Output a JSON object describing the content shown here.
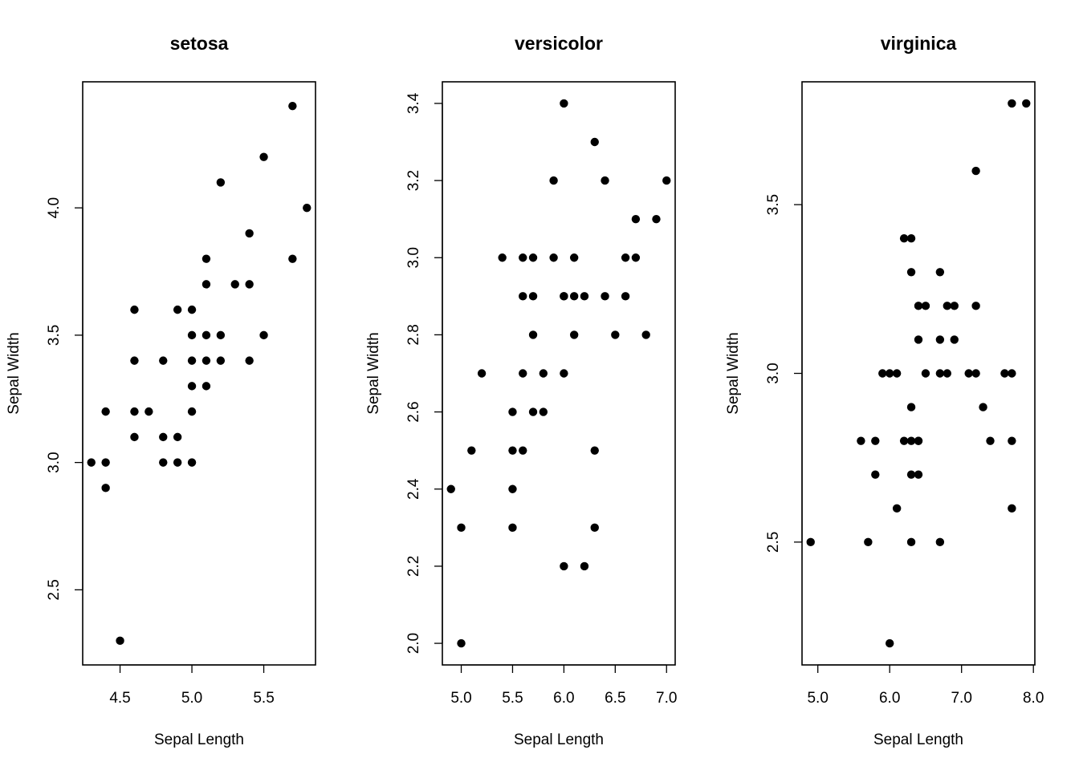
{
  "chart_data": [
    {
      "type": "scatter",
      "title": "setosa",
      "xlabel": "Sepal Length",
      "ylabel": "Sepal Width",
      "xlim": [
        4.24,
        5.86
      ],
      "ylim": [
        2.205,
        4.495
      ],
      "xticks": [
        "4.5",
        "5.0",
        "5.5"
      ],
      "yticks": [
        "2.5",
        "3.0",
        "3.5",
        "4.0"
      ],
      "series": [
        {
          "x": [
            4.3,
            4.4,
            4.4,
            4.4,
            4.5,
            4.6,
            4.6,
            4.6,
            4.6,
            4.7,
            4.8,
            4.8,
            4.8,
            4.9,
            4.9,
            4.9,
            5.0,
            5.0,
            5.0,
            5.0,
            5.0,
            5.0,
            5.1,
            5.1,
            5.1,
            5.1,
            5.1,
            5.2,
            5.2,
            5.2,
            5.3,
            5.4,
            5.4,
            5.4,
            5.5,
            5.5,
            5.7,
            5.7,
            5.8
          ],
          "y": [
            3.0,
            2.9,
            3.0,
            3.2,
            2.3,
            3.1,
            3.2,
            3.4,
            3.6,
            3.2,
            3.0,
            3.1,
            3.4,
            3.0,
            3.1,
            3.6,
            3.0,
            3.2,
            3.3,
            3.4,
            3.5,
            3.6,
            3.3,
            3.4,
            3.5,
            3.7,
            3.8,
            3.4,
            3.5,
            4.1,
            3.7,
            3.4,
            3.7,
            3.9,
            3.5,
            4.2,
            3.8,
            4.4,
            4.0
          ]
        }
      ]
    },
    {
      "type": "scatter",
      "title": "versicolor",
      "xlabel": "Sepal Length",
      "ylabel": "Sepal Width",
      "xlim": [
        4.816,
        7.084
      ],
      "ylim": [
        1.944,
        3.456
      ],
      "xticks": [
        "5.0",
        "5.5",
        "6.0",
        "6.5",
        "7.0"
      ],
      "yticks": [
        "2.0",
        "2.2",
        "2.4",
        "2.6",
        "2.8",
        "3.0",
        "3.2",
        "3.4"
      ],
      "series": [
        {
          "x": [
            4.9,
            5.0,
            5.0,
            5.1,
            5.2,
            5.4,
            5.5,
            5.5,
            5.5,
            5.5,
            5.6,
            5.6,
            5.6,
            5.6,
            5.7,
            5.7,
            5.7,
            5.7,
            5.8,
            5.8,
            5.9,
            5.9,
            6.0,
            6.0,
            6.0,
            6.0,
            6.0,
            6.1,
            6.1,
            6.1,
            6.2,
            6.2,
            6.3,
            6.3,
            6.3,
            6.4,
            6.4,
            6.5,
            6.6,
            6.6,
            6.7,
            6.7,
            6.8,
            6.9,
            7.0
          ],
          "y": [
            2.4,
            2.0,
            2.3,
            2.5,
            2.7,
            3.0,
            2.3,
            2.4,
            2.5,
            2.6,
            2.5,
            2.7,
            2.9,
            3.0,
            2.6,
            2.8,
            2.9,
            3.0,
            2.6,
            2.7,
            3.0,
            3.2,
            2.2,
            2.7,
            2.9,
            3.4,
            2.9,
            2.8,
            2.9,
            3.0,
            2.2,
            2.9,
            2.3,
            2.5,
            3.3,
            2.9,
            3.2,
            2.8,
            2.9,
            3.0,
            3.0,
            3.1,
            2.8,
            3.1,
            3.2
          ]
        }
      ]
    },
    {
      "type": "scatter",
      "title": "virginica",
      "xlabel": "Sepal Length",
      "ylabel": "Sepal Width",
      "xlim": [
        4.78,
        8.02
      ],
      "ylim": [
        2.136,
        3.864
      ],
      "xticks": [
        "5.0",
        "6.0",
        "7.0",
        "8.0"
      ],
      "yticks": [
        "2.5",
        "3.0",
        "3.5"
      ],
      "series": [
        {
          "x": [
            4.9,
            5.6,
            5.7,
            5.8,
            5.8,
            5.9,
            6.0,
            6.0,
            6.1,
            6.1,
            6.2,
            6.2,
            6.3,
            6.3,
            6.3,
            6.3,
            6.3,
            6.3,
            6.4,
            6.4,
            6.4,
            6.4,
            6.4,
            6.5,
            6.5,
            6.7,
            6.7,
            6.7,
            6.7,
            6.8,
            6.8,
            6.9,
            6.9,
            7.1,
            7.2,
            7.2,
            7.2,
            7.3,
            7.4,
            7.6,
            7.7,
            7.7,
            7.7,
            7.7,
            7.9
          ],
          "y": [
            2.5,
            2.8,
            2.5,
            2.7,
            2.8,
            3.0,
            2.2,
            3.0,
            2.6,
            3.0,
            2.8,
            3.4,
            2.5,
            2.7,
            2.8,
            2.9,
            3.3,
            3.4,
            2.7,
            2.8,
            3.1,
            3.2,
            2.8,
            3.0,
            3.2,
            2.5,
            3.0,
            3.1,
            3.3,
            3.0,
            3.2,
            3.1,
            3.2,
            3.0,
            3.0,
            3.2,
            3.6,
            2.9,
            2.8,
            3.0,
            2.6,
            2.8,
            3.0,
            3.8,
            3.8
          ]
        }
      ]
    }
  ]
}
